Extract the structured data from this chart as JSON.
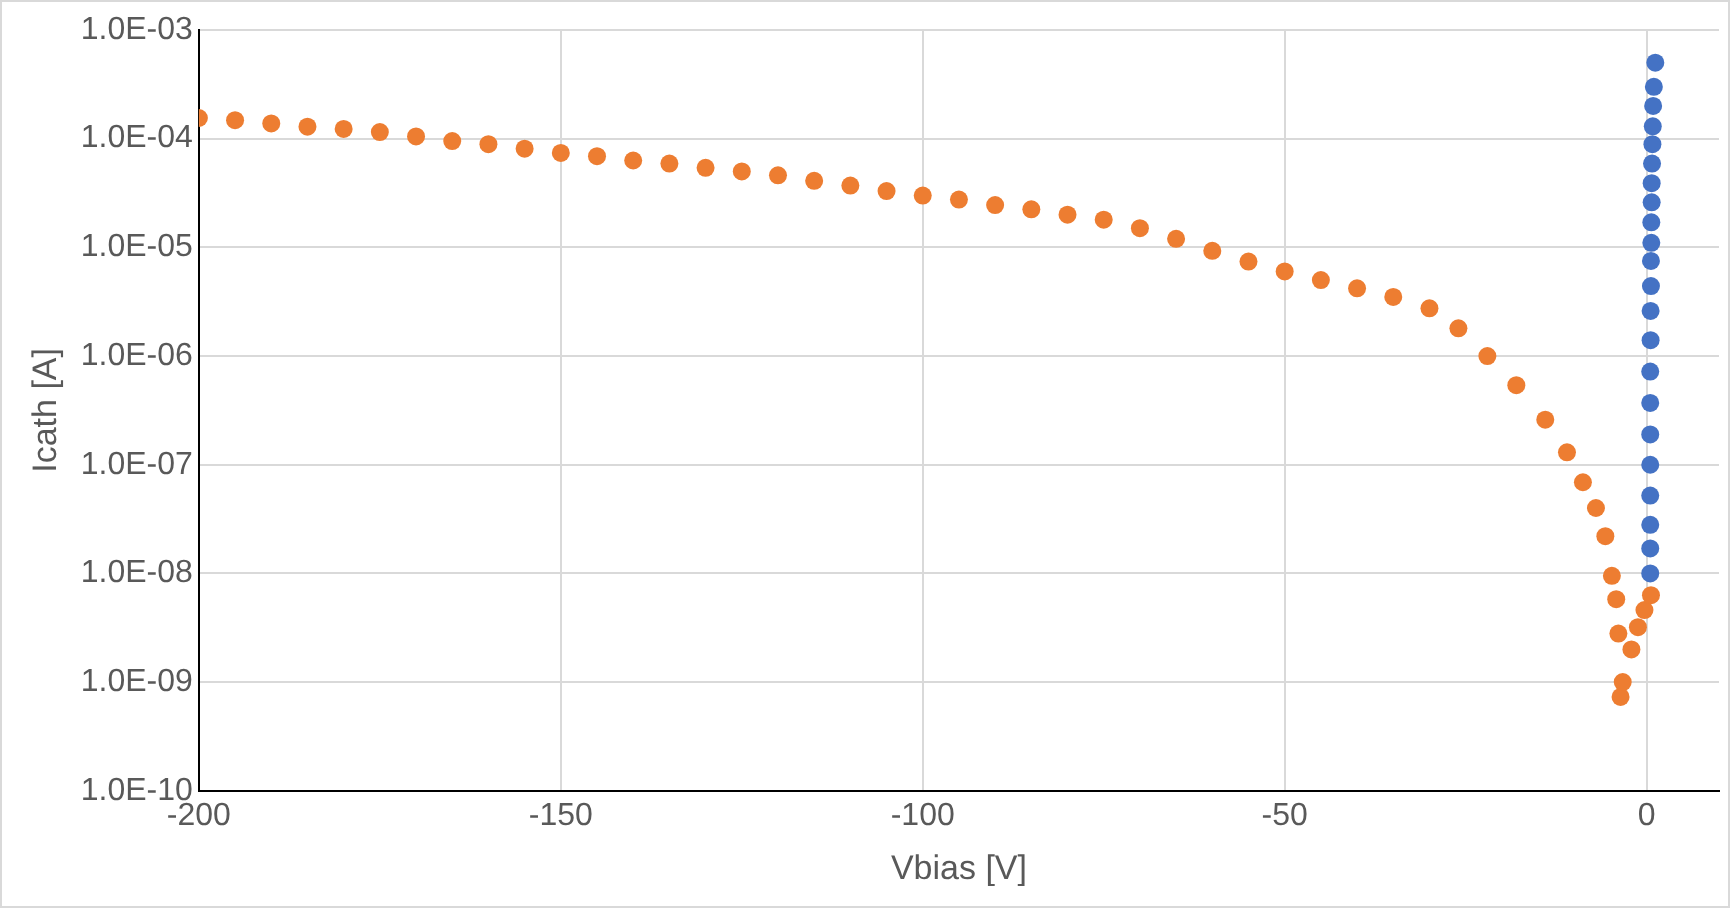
{
  "chart_data": {
    "type": "scatter",
    "xlabel": "Vbias [V]",
    "ylabel": "Icath [A]",
    "xlim": [
      -200,
      10
    ],
    "xticks": [
      -200,
      -150,
      -100,
      -50,
      0
    ],
    "ylim": [
      1e-10,
      0.001
    ],
    "yticks": [
      {
        "value": 1e-10,
        "label": "1.0E-10"
      },
      {
        "value": 1e-09,
        "label": "1.0E-09"
      },
      {
        "value": 1e-08,
        "label": "1.0E-08"
      },
      {
        "value": 1e-07,
        "label": "1.0E-07"
      },
      {
        "value": 1e-06,
        "label": "1.0E-06"
      },
      {
        "value": 1e-05,
        "label": "1.0E-05"
      },
      {
        "value": 0.0001,
        "label": "1.0E-04"
      },
      {
        "value": 0.001,
        "label": "1.0E-03"
      }
    ],
    "log": "y",
    "grid": true,
    "legend": false,
    "marker": "circle",
    "series": [
      {
        "color": "#ed7d31",
        "x": [
          -200,
          -195,
          -190,
          -185,
          -180,
          -175,
          -170,
          -165,
          -160,
          -155,
          -150,
          -145,
          -140,
          -135,
          -130,
          -125,
          -120,
          -115,
          -110,
          -105,
          -100,
          -95,
          -90,
          -85,
          -80,
          -75,
          -70,
          -65,
          -60,
          -55,
          -50,
          -45,
          -40,
          -35,
          -30,
          -26,
          -22,
          -18,
          -14,
          -11,
          -8.8,
          -7,
          -5.7,
          -4.8,
          -4.2,
          -3.9,
          -3.6,
          -3.3,
          -2.1,
          -1.2,
          -0.3,
          0.6
        ],
        "values": [
          0.000155,
          0.000148,
          0.000138,
          0.000129,
          0.000123,
          0.000115,
          0.000105,
          9.5e-05,
          8.9e-05,
          8.1e-05,
          7.4e-05,
          6.9e-05,
          6.3e-05,
          5.9e-05,
          5.4e-05,
          5e-05,
          4.6e-05,
          4.1e-05,
          3.7e-05,
          3.3e-05,
          3e-05,
          2.75e-05,
          2.45e-05,
          2.24e-05,
          2e-05,
          1.8e-05,
          1.5e-05,
          1.2e-05,
          9.3e-06,
          7.4e-06,
          6e-06,
          5e-06,
          4.2e-06,
          3.5e-06,
          2.75e-06,
          1.8e-06,
          1e-06,
          5.4e-07,
          2.6e-07,
          1.3e-07,
          6.9e-08,
          4e-08,
          2.2e-08,
          9.5e-09,
          5.8e-09,
          2.8e-09,
          7.3e-10,
          1e-09,
          2e-09,
          3.2e-09,
          4.6e-09,
          6.3e-09
        ]
      },
      {
        "color": "#4472c4",
        "x": [
          0.5,
          0.5,
          0.5,
          0.5,
          0.5,
          0.5,
          0.5,
          0.5,
          0.55,
          0.55,
          0.6,
          0.6,
          0.65,
          0.65,
          0.7,
          0.7,
          0.75,
          0.8,
          0.85,
          0.9,
          1.0,
          1.2
        ],
        "values": [
          1e-08,
          1.7e-08,
          2.8e-08,
          5.2e-08,
          1e-07,
          1.9e-07,
          3.7e-07,
          7.2e-07,
          1.4e-06,
          2.6e-06,
          4.4e-06,
          7.5e-06,
          1.1e-05,
          1.7e-05,
          2.6e-05,
          3.9e-05,
          5.9e-05,
          8.9e-05,
          0.00013,
          0.0002,
          0.0003,
          0.0005
        ]
      }
    ]
  }
}
